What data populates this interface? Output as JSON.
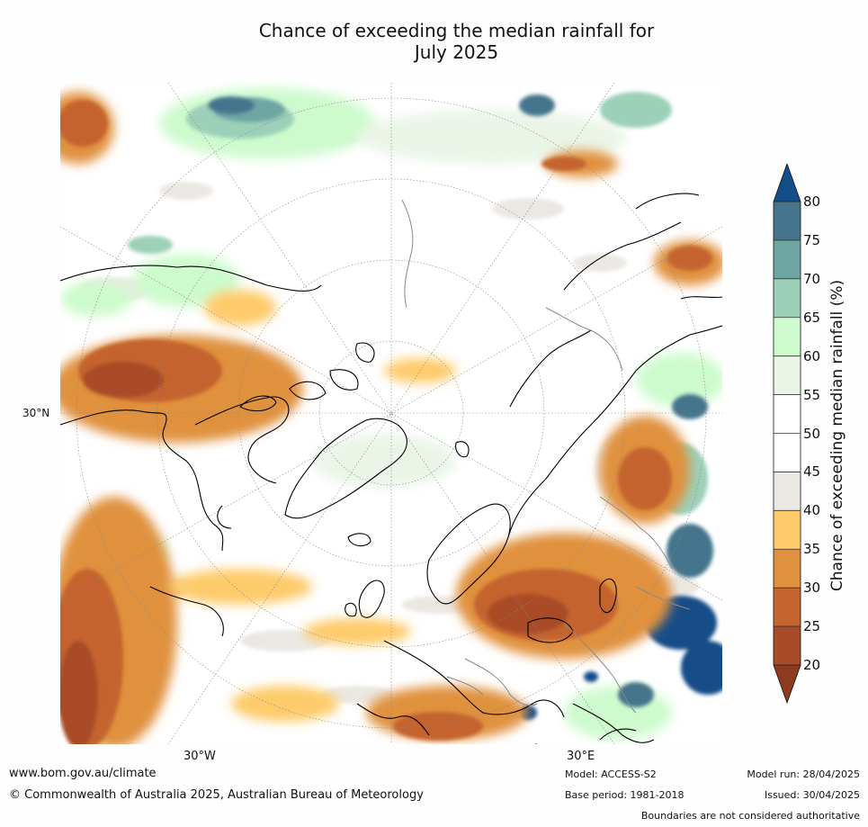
{
  "title_line1": "Chance of exceeding the median rainfall for",
  "title_line2": "July 2025",
  "axis_labels": {
    "lat_30n": "30°N",
    "lon_30w": "30°W",
    "lon_30e": "30°E"
  },
  "colorbar": {
    "label": "Chance of exceeding median rainfall (%)",
    "ticks": [
      "80",
      "75",
      "70",
      "65",
      "60",
      "55",
      "50",
      "45",
      "40",
      "35",
      "30",
      "25",
      "20"
    ],
    "bins": [
      {
        "range": "75-80",
        "color": "#45758d"
      },
      {
        "range": "70-75",
        "color": "#6ea6a4"
      },
      {
        "range": "65-70",
        "color": "#9cd0b8"
      },
      {
        "range": "60-65",
        "color": "#cdfbcd"
      },
      {
        "range": "55-60",
        "color": "#eaf5e8"
      },
      {
        "range": "50-55",
        "color": "#ffffff"
      },
      {
        "range": "45-50",
        "color": "#ffffff"
      },
      {
        "range": "40-45",
        "color": "#ebe8e3"
      },
      {
        "range": "35-40",
        "color": "#fecb6a"
      },
      {
        "range": "30-35",
        "color": "#e0913e"
      },
      {
        "range": "25-30",
        "color": "#c4642f"
      },
      {
        "range": "20-25",
        "color": "#a84b28"
      }
    ],
    "over_color": "#134e88",
    "under_color": "#8e3a1e"
  },
  "footer": {
    "website": "www.bom.gov.au/climate",
    "copyright": "© Commonwealth of Australia 2025, Australian Bureau of Meteorology",
    "model": "Model: ACCESS-S2",
    "base_period": "Base period: 1981-2018",
    "model_run": "Model run: 28/04/2025",
    "issued": "Issued: 30/04/2025",
    "disclaimer": "Boundaries are not considered authoritative"
  }
}
